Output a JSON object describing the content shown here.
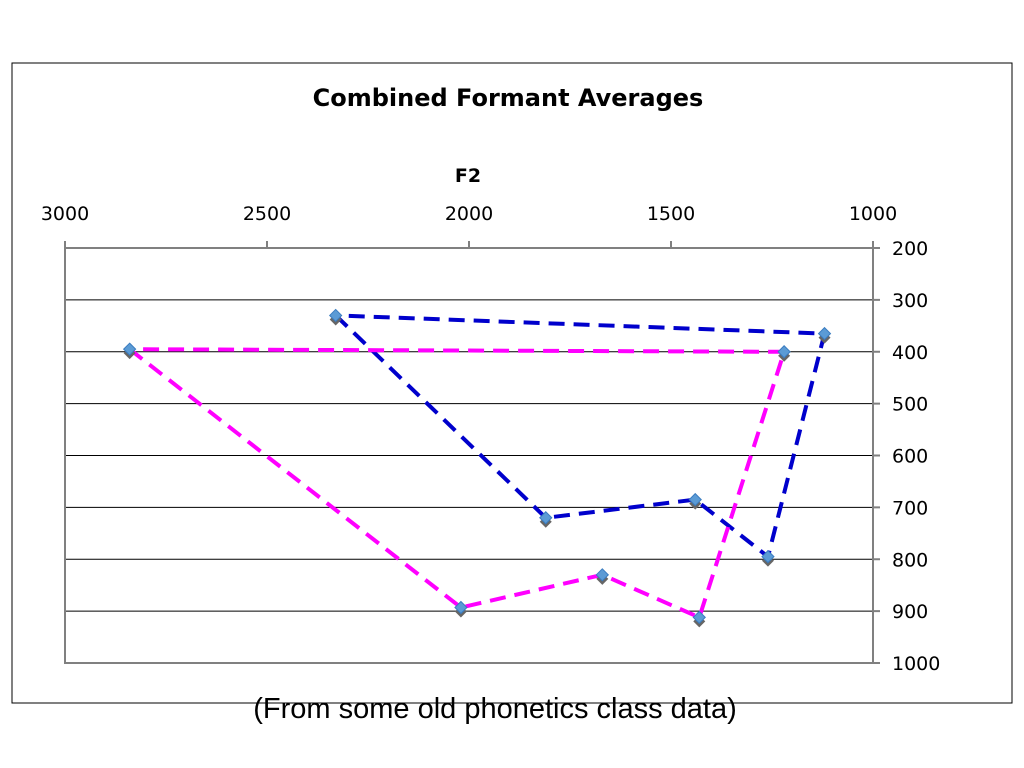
{
  "caption": "(From some old phonetics class data)",
  "chart_data": {
    "type": "line",
    "title": "Combined Formant Averages",
    "xlabel": "F2",
    "ylabel": "",
    "x_axis": {
      "min": 1000,
      "max": 3000,
      "reversed": true,
      "position": "top",
      "ticks": [
        "3000",
        "2500",
        "2000",
        "1500",
        "1000"
      ]
    },
    "y_axis": {
      "min": 200,
      "max": 1000,
      "reversed": true,
      "position": "right",
      "ticks": [
        "200",
        "300",
        "400",
        "500",
        "600",
        "700",
        "800",
        "900",
        "1000"
      ]
    },
    "grid": "horizontal",
    "legend": "none",
    "series": [
      {
        "color": "#0000cc",
        "points": [
          {
            "x": 2330,
            "y": 330
          },
          {
            "x": 1810,
            "y": 720
          },
          {
            "x": 1440,
            "y": 685
          },
          {
            "x": 1260,
            "y": 795
          },
          {
            "x": 1120,
            "y": 365
          },
          {
            "x": 2330,
            "y": 330
          }
        ]
      },
      {
        "color": "#ff00ff",
        "points": [
          {
            "x": 2840,
            "y": 395
          },
          {
            "x": 2020,
            "y": 893
          },
          {
            "x": 1670,
            "y": 830
          },
          {
            "x": 1430,
            "y": 912
          },
          {
            "x": 1220,
            "y": 400
          },
          {
            "x": 2840,
            "y": 395
          }
        ]
      }
    ]
  }
}
